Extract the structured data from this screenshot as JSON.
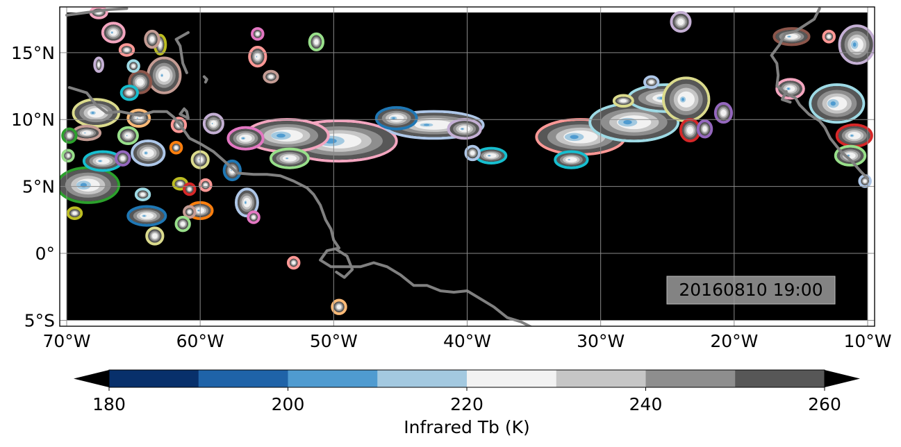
{
  "map": {
    "timestamp": "20160810 19:00",
    "lon_range": [
      -70,
      -10
    ],
    "lat_range": [
      -5,
      18
    ],
    "lon_ticks": [
      {
        "value": -70,
        "label": "70°W"
      },
      {
        "value": -60,
        "label": "60°W"
      },
      {
        "value": -50,
        "label": "50°W"
      },
      {
        "value": -40,
        "label": "40°W"
      },
      {
        "value": -30,
        "label": "30°W"
      },
      {
        "value": -20,
        "label": "20°W"
      },
      {
        "value": -10,
        "label": "10°W"
      }
    ],
    "lat_ticks": [
      {
        "value": 15,
        "label": "15°N"
      },
      {
        "value": 10,
        "label": "10°N"
      },
      {
        "value": 5,
        "label": "5°N"
      },
      {
        "value": 0,
        "label": "0°"
      },
      {
        "value": -5,
        "label": "5°S"
      }
    ],
    "background_color": "#000000",
    "coastline_color": "#808080",
    "grid": true
  },
  "colorbar": {
    "label": "Infrared Tb (K)",
    "range": [
      175,
      265
    ],
    "levels": [
      180,
      190,
      200,
      210,
      220,
      230,
      240,
      250,
      260
    ],
    "tick_labels": [
      {
        "value": 180,
        "label": "180"
      },
      {
        "value": 200,
        "label": "200"
      },
      {
        "value": 220,
        "label": "220"
      },
      {
        "value": 240,
        "label": "240"
      },
      {
        "value": 260,
        "label": "260"
      }
    ],
    "colors": [
      "#08306b",
      "#1f63a8",
      "#4f9bd0",
      "#a3c9e0",
      "#f2f2f2",
      "#c6c6c6",
      "#8e8e8e",
      "#575757"
    ],
    "extend_low_color": "#000000",
    "extend_high_color": "#000000"
  },
  "coastlines": [
    [
      [
        -70,
        17.8
      ],
      [
        -67,
        18.2
      ],
      [
        -65.5,
        18.3
      ]
    ],
    [
      [
        -69.8,
        12.4
      ],
      [
        -68.5,
        12.0
      ],
      [
        -67.8,
        11.1
      ],
      [
        -67,
        10.5
      ],
      [
        -66,
        10.6
      ],
      [
        -64.5,
        10.3
      ],
      [
        -63.5,
        10.6
      ],
      [
        -62.5,
        10.6
      ],
      [
        -62,
        10.2
      ],
      [
        -61.5,
        9.6
      ],
      [
        -60.8,
        8.6
      ],
      [
        -60,
        8.2
      ],
      [
        -59,
        7.6
      ],
      [
        -58.2,
        6.9
      ],
      [
        -57.2,
        6.0
      ],
      [
        -56,
        5.9
      ],
      [
        -55,
        5.9
      ],
      [
        -54,
        5.8
      ],
      [
        -53,
        5.4
      ],
      [
        -52,
        4.9
      ],
      [
        -51.5,
        4.4
      ],
      [
        -51,
        3.6
      ],
      [
        -50.6,
        2.5
      ],
      [
        -50.2,
        1.8
      ],
      [
        -50,
        1.0
      ],
      [
        -49.6,
        0.4
      ],
      [
        -50.5,
        0.2
      ],
      [
        -51,
        -0.5
      ],
      [
        -50.2,
        -1.0
      ],
      [
        -49,
        -1.0
      ],
      [
        -48,
        -1.0
      ],
      [
        -47,
        -0.7
      ],
      [
        -46,
        -1.0
      ],
      [
        -45,
        -1.6
      ],
      [
        -44,
        -2.4
      ],
      [
        -43,
        -2.4
      ],
      [
        -42,
        -2.8
      ],
      [
        -41,
        -2.9
      ],
      [
        -40,
        -2.8
      ],
      [
        -39,
        -3.4
      ],
      [
        -38,
        -4.0
      ],
      [
        -37,
        -4.8
      ],
      [
        -36,
        -5.1
      ],
      [
        -35.2,
        -5.5
      ]
    ],
    [
      [
        -49.8,
        0.3
      ],
      [
        -49.0,
        -0.2
      ],
      [
        -48.6,
        -1.2
      ],
      [
        -49.2,
        -1.8
      ],
      [
        -49.8,
        -1.4
      ]
    ],
    [
      [
        -59.7,
        13.2
      ],
      [
        -59.5,
        13.0
      ],
      [
        -59.6,
        12.8
      ]
    ],
    [
      [
        -61.2,
        10.8
      ],
      [
        -61.5,
        10.4
      ],
      [
        -60.9,
        10.1
      ],
      [
        -61.0,
        10.6
      ],
      [
        -61.2,
        10.8
      ]
    ],
    [
      [
        -60.9,
        16.5
      ],
      [
        -61.8,
        16.0
      ],
      [
        -61.5,
        15.5
      ],
      [
        -61.3,
        14.2
      ],
      [
        -61.0,
        13.5
      ]
    ],
    [
      [
        -13.6,
        18.3
      ],
      [
        -14.0,
        17.5
      ],
      [
        -15.4,
        16.6
      ],
      [
        -16.2,
        16.4
      ],
      [
        -16.6,
        15.6
      ],
      [
        -17.2,
        14.8
      ],
      [
        -16.8,
        14.2
      ],
      [
        -16.7,
        13.3
      ],
      [
        -16.8,
        12.5
      ],
      [
        -16.0,
        11.9
      ],
      [
        -15.4,
        11.6
      ],
      [
        -15.1,
        11.1
      ],
      [
        -14.4,
        10.4
      ],
      [
        -13.6,
        9.9
      ],
      [
        -13.2,
        9.4
      ],
      [
        -12.8,
        8.6
      ],
      [
        -12.0,
        7.6
      ],
      [
        -11.2,
        6.9
      ],
      [
        -10.5,
        6.1
      ],
      [
        -10.0,
        5.6
      ]
    ],
    [
      [
        -16.1,
        12.1
      ],
      [
        -16.4,
        11.5
      ],
      [
        -15.8,
        11.3
      ]
    ]
  ],
  "cloud_systems": [
    {
      "lon": -49.6,
      "lat": 8.4,
      "rx": 4.2,
      "ry": 1.4,
      "core": 0.55,
      "outline": "#f4a6c0"
    },
    {
      "lon": -53.5,
      "lat": 8.8,
      "rx": 3.0,
      "ry": 1.1,
      "core": 0.55,
      "outline": "#f4a6c0"
    },
    {
      "lon": -53.3,
      "lat": 7.1,
      "rx": 1.3,
      "ry": 0.6,
      "core": 0.2,
      "outline": "#98df8a"
    },
    {
      "lon": -56.6,
      "lat": 8.6,
      "rx": 1.2,
      "ry": 0.7,
      "core": 0.3,
      "outline": "#e377c2"
    },
    {
      "lon": -42.5,
      "lat": 9.6,
      "rx": 3.6,
      "ry": 0.9,
      "core": 0.3,
      "outline": "#aec7e8"
    },
    {
      "lon": -45.3,
      "lat": 10.1,
      "rx": 1.4,
      "ry": 0.7,
      "core": 0.4,
      "outline": "#1f77b4"
    },
    {
      "lon": -40.2,
      "lat": 9.3,
      "rx": 1.1,
      "ry": 0.6,
      "core": 0.3,
      "outline": "#c5b0d5"
    },
    {
      "lon": -38.2,
      "lat": 7.3,
      "rx": 1.0,
      "ry": 0.45,
      "core": 0.3,
      "outline": "#17becf"
    },
    {
      "lon": -39.6,
      "lat": 7.5,
      "rx": 0.4,
      "ry": 0.4,
      "core": 0.0,
      "outline": "#aec7e8"
    },
    {
      "lon": -31.5,
      "lat": 8.7,
      "rx": 3.2,
      "ry": 1.2,
      "core": 0.5,
      "outline": "#ff9896"
    },
    {
      "lon": -27.5,
      "lat": 9.8,
      "rx": 3.2,
      "ry": 1.3,
      "core": 0.5,
      "outline": "#9edae5"
    },
    {
      "lon": -25.0,
      "lat": 11.6,
      "rx": 2.8,
      "ry": 0.9,
      "core": 0.3,
      "outline": "#9edae5"
    },
    {
      "lon": -32.2,
      "lat": 7.0,
      "rx": 1.1,
      "ry": 0.5,
      "core": 0.2,
      "outline": "#17becf"
    },
    {
      "lon": -23.6,
      "lat": 11.5,
      "rx": 1.6,
      "ry": 1.5,
      "core": 0.3,
      "outline": "#dbdb8d"
    },
    {
      "lon": -23.3,
      "lat": 9.2,
      "rx": 0.6,
      "ry": 0.7,
      "core": 0.0,
      "outline": "#d62728"
    },
    {
      "lon": -20.8,
      "lat": 10.5,
      "rx": 0.5,
      "ry": 0.6,
      "core": 0.0,
      "outline": "#9467bd"
    },
    {
      "lon": -22.2,
      "lat": 9.3,
      "rx": 0.4,
      "ry": 0.5,
      "core": 0.0,
      "outline": "#9467bd"
    },
    {
      "lon": -28.3,
      "lat": 11.4,
      "rx": 0.6,
      "ry": 0.3,
      "core": 0.0,
      "outline": "#dbdb8d"
    },
    {
      "lon": -26.2,
      "lat": 12.8,
      "rx": 0.4,
      "ry": 0.3,
      "core": 0.0,
      "outline": "#aec7e8"
    },
    {
      "lon": -24.0,
      "lat": 17.3,
      "rx": 0.6,
      "ry": 0.6,
      "core": 0.0,
      "outline": "#c5b0d5"
    },
    {
      "lon": -15.7,
      "lat": 16.2,
      "rx": 1.2,
      "ry": 0.5,
      "core": 0.3,
      "outline": "#8c564b"
    },
    {
      "lon": -12.9,
      "lat": 16.2,
      "rx": 0.3,
      "ry": 0.3,
      "core": 0.0,
      "outline": "#ff9896"
    },
    {
      "lon": -10.8,
      "lat": 15.6,
      "rx": 1.2,
      "ry": 1.3,
      "core": 0.5,
      "outline": "#c5b0d5"
    },
    {
      "lon": -12.3,
      "lat": 11.2,
      "rx": 1.9,
      "ry": 1.3,
      "core": 0.5,
      "outline": "#9edae5"
    },
    {
      "lon": -15.8,
      "lat": 12.3,
      "rx": 0.9,
      "ry": 0.6,
      "core": 0.4,
      "outline": "#f4a6c0"
    },
    {
      "lon": -11.0,
      "lat": 8.8,
      "rx": 1.2,
      "ry": 0.7,
      "core": 0.3,
      "outline": "#d62728"
    },
    {
      "lon": -11.3,
      "lat": 7.3,
      "rx": 1.0,
      "ry": 0.6,
      "core": 0.3,
      "outline": "#98df8a"
    },
    {
      "lon": -10.2,
      "lat": 5.4,
      "rx": 0.3,
      "ry": 0.3,
      "core": 0.0,
      "outline": "#aec7e8"
    },
    {
      "lon": -68.4,
      "lat": 5.1,
      "rx": 2.2,
      "ry": 1.2,
      "core": 0.55,
      "outline": "#2ca02c"
    },
    {
      "lon": -67.3,
      "lat": 6.9,
      "rx": 1.3,
      "ry": 0.6,
      "core": 0.3,
      "outline": "#17becf"
    },
    {
      "lon": -67.8,
      "lat": 10.5,
      "rx": 1.6,
      "ry": 0.9,
      "core": 0.3,
      "outline": "#dbdb8d"
    },
    {
      "lon": -68.5,
      "lat": 9.0,
      "rx": 0.9,
      "ry": 0.4,
      "core": 0.2,
      "outline": "#c49c94"
    },
    {
      "lon": -63.9,
      "lat": 7.5,
      "rx": 1.1,
      "ry": 0.8,
      "core": 0.3,
      "outline": "#aec7e8"
    },
    {
      "lon": -64.0,
      "lat": 2.8,
      "rx": 1.3,
      "ry": 0.6,
      "core": 0.3,
      "outline": "#1f77b4"
    },
    {
      "lon": -60.0,
      "lat": 3.2,
      "rx": 0.8,
      "ry": 0.5,
      "core": 0.3,
      "outline": "#ff7f0e"
    },
    {
      "lon": -56.5,
      "lat": 3.8,
      "rx": 0.7,
      "ry": 0.9,
      "core": 0.3,
      "outline": "#aec7e8"
    },
    {
      "lon": -63.4,
      "lat": 1.3,
      "rx": 0.5,
      "ry": 0.5,
      "core": 0.0,
      "outline": "#dbdb8d"
    },
    {
      "lon": -66.5,
      "lat": 16.5,
      "rx": 0.7,
      "ry": 0.6,
      "core": 0.3,
      "outline": "#f4a6c0"
    },
    {
      "lon": -62.7,
      "lat": 13.3,
      "rx": 1.1,
      "ry": 1.2,
      "core": 0.2,
      "outline": "#c49c94"
    },
    {
      "lon": -64.5,
      "lat": 12.8,
      "rx": 0.7,
      "ry": 0.7,
      "core": 0.0,
      "outline": "#8c564b"
    },
    {
      "lon": -64.6,
      "lat": 10.1,
      "rx": 0.7,
      "ry": 0.5,
      "core": 0.2,
      "outline": "#ffbb78"
    },
    {
      "lon": -65.4,
      "lat": 8.8,
      "rx": 0.6,
      "ry": 0.5,
      "core": 0.2,
      "outline": "#98df8a"
    },
    {
      "lon": -59.0,
      "lat": 9.7,
      "rx": 0.6,
      "ry": 0.6,
      "core": 0.2,
      "outline": "#c5b0d5"
    },
    {
      "lon": -55.7,
      "lat": 14.7,
      "rx": 0.5,
      "ry": 0.6,
      "core": 0.2,
      "outline": "#ff9896"
    },
    {
      "lon": -51.3,
      "lat": 15.8,
      "rx": 0.4,
      "ry": 0.5,
      "core": 0.0,
      "outline": "#98df8a"
    },
    {
      "lon": -55.7,
      "lat": 16.4,
      "rx": 0.3,
      "ry": 0.3,
      "core": 0.0,
      "outline": "#e377c2"
    },
    {
      "lon": -54.7,
      "lat": 13.2,
      "rx": 0.4,
      "ry": 0.3,
      "core": 0.0,
      "outline": "#c49c94"
    },
    {
      "lon": -57.6,
      "lat": 6.2,
      "rx": 0.5,
      "ry": 0.6,
      "core": 0.2,
      "outline": "#1f77b4"
    },
    {
      "lon": -60.0,
      "lat": 7.0,
      "rx": 0.5,
      "ry": 0.5,
      "core": 0.2,
      "outline": "#dbdb8d"
    },
    {
      "lon": -61.6,
      "lat": 9.6,
      "rx": 0.4,
      "ry": 0.4,
      "core": 0.0,
      "outline": "#ff9896"
    },
    {
      "lon": -61.8,
      "lat": 7.9,
      "rx": 0.3,
      "ry": 0.3,
      "core": 0.0,
      "outline": "#ff7f0e"
    },
    {
      "lon": -65.8,
      "lat": 7.1,
      "rx": 0.4,
      "ry": 0.4,
      "core": 0.0,
      "outline": "#9467bd"
    },
    {
      "lon": -64.3,
      "lat": 4.4,
      "rx": 0.4,
      "ry": 0.3,
      "core": 0.0,
      "outline": "#9edae5"
    },
    {
      "lon": -61.5,
      "lat": 5.2,
      "rx": 0.4,
      "ry": 0.3,
      "core": 0.0,
      "outline": "#bcbd22"
    },
    {
      "lon": -60.8,
      "lat": 4.8,
      "rx": 0.3,
      "ry": 0.3,
      "core": 0.0,
      "outline": "#d62728"
    },
    {
      "lon": -59.6,
      "lat": 5.1,
      "rx": 0.3,
      "ry": 0.3,
      "core": 0.0,
      "outline": "#ff9896"
    },
    {
      "lon": -60.8,
      "lat": 3.1,
      "rx": 0.3,
      "ry": 0.3,
      "core": 0.0,
      "outline": "#c49c94"
    },
    {
      "lon": -61.3,
      "lat": 2.2,
      "rx": 0.4,
      "ry": 0.4,
      "core": 0.0,
      "outline": "#98df8a"
    },
    {
      "lon": -56.0,
      "lat": 2.7,
      "rx": 0.3,
      "ry": 0.3,
      "core": 0.0,
      "outline": "#e377c2"
    },
    {
      "lon": -69.4,
      "lat": 3.0,
      "rx": 0.4,
      "ry": 0.3,
      "core": 0.0,
      "outline": "#bcbd22"
    },
    {
      "lon": -63.0,
      "lat": 15.6,
      "rx": 0.3,
      "ry": 0.6,
      "core": 0.0,
      "outline": "#bcbd22"
    },
    {
      "lon": -63.6,
      "lat": 16.0,
      "rx": 0.4,
      "ry": 0.5,
      "core": 0.0,
      "outline": "#c49c94"
    },
    {
      "lon": -65.5,
      "lat": 15.2,
      "rx": 0.4,
      "ry": 0.3,
      "core": 0.0,
      "outline": "#ff9896"
    },
    {
      "lon": -67.6,
      "lat": 14.1,
      "rx": 0.2,
      "ry": 0.4,
      "core": 0.0,
      "outline": "#c5b0d5"
    },
    {
      "lon": -65.0,
      "lat": 14.0,
      "rx": 0.3,
      "ry": 0.3,
      "core": 0.0,
      "outline": "#9edae5"
    },
    {
      "lon": -65.3,
      "lat": 12.0,
      "rx": 0.5,
      "ry": 0.4,
      "core": 0.0,
      "outline": "#17becf"
    },
    {
      "lon": -67.6,
      "lat": 18.0,
      "rx": 0.5,
      "ry": 0.3,
      "core": 0.0,
      "outline": "#f4a6c0"
    },
    {
      "lon": -69.8,
      "lat": 8.8,
      "rx": 0.4,
      "ry": 0.4,
      "core": 0.0,
      "outline": "#2ca02c"
    },
    {
      "lon": -69.9,
      "lat": 7.3,
      "rx": 0.3,
      "ry": 0.3,
      "core": 0.0,
      "outline": "#98df8a"
    },
    {
      "lon": -53.0,
      "lat": -0.7,
      "rx": 0.3,
      "ry": 0.3,
      "core": 0.0,
      "outline": "#ff9896"
    },
    {
      "lon": -49.6,
      "lat": -4.0,
      "rx": 0.4,
      "ry": 0.4,
      "core": 0.0,
      "outline": "#ffbb78"
    }
  ]
}
